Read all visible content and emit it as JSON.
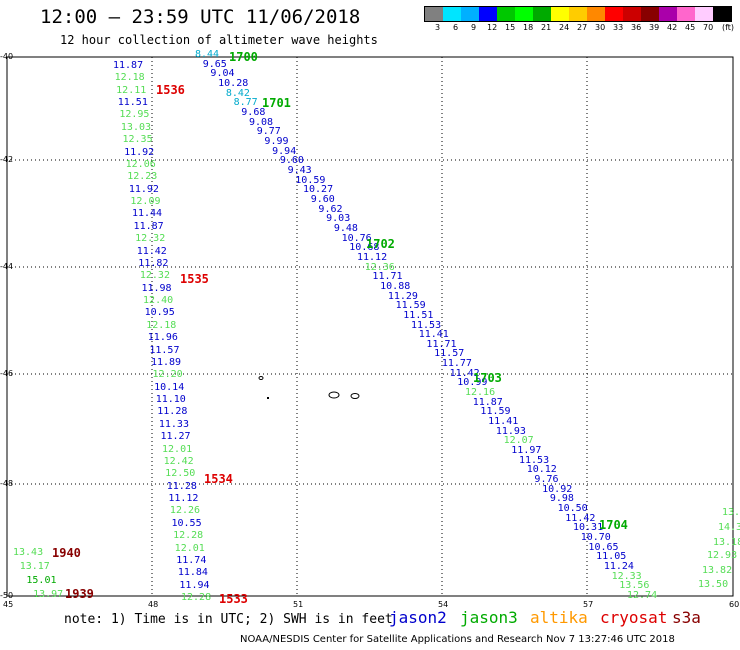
{
  "header": {
    "title": "12:00 – 23:59 UTC 11/06/2018",
    "subtitle": "12 hour collection of altimeter wave heights"
  },
  "colorbar": {
    "colors": [
      "#808080",
      "#00e5ff",
      "#00b0ff",
      "#0000ff",
      "#00c800",
      "#00ff00",
      "#00aa00",
      "#ffff00",
      "#ffcc00",
      "#ff8800",
      "#ff0000",
      "#cc0000",
      "#880000",
      "#aa00aa",
      "#ff66cc",
      "#ffccff",
      "#000000"
    ],
    "labels": [
      "3",
      "6",
      "9",
      "12",
      "15",
      "18",
      "21",
      "24",
      "27",
      "30",
      "33",
      "36",
      "39",
      "42",
      "45",
      "70"
    ],
    "unit": "(ft)"
  },
  "map": {
    "lon_range": [
      45,
      60
    ],
    "lat_range": [
      -40,
      -50
    ],
    "lat_ticks": [
      "-40",
      "-42",
      "-44",
      "-46",
      "-48",
      "-50"
    ],
    "lon_ticks": [
      "45",
      "48",
      "51",
      "54",
      "57",
      "60"
    ],
    "grid": "dotted",
    "colors": {
      "jason2": "#0000cc",
      "jason3": "#00aa00",
      "altika": "#ff9900",
      "cryosat": "#dd0000",
      "s3a": "#880000",
      "cyan": "#00aacc",
      "light_green": "#55dd55"
    },
    "tracks": [
      {
        "id": "track-1",
        "values": [
          {
            "v": "11.87",
            "c": "jason2"
          },
          {
            "v": "12.18",
            "c": "light_green"
          },
          {
            "v": "12.11",
            "c": "light_green"
          },
          {
            "v": "11.51",
            "c": "jason2"
          },
          {
            "v": "12.95",
            "c": "light_green"
          },
          {
            "v": "13.03",
            "c": "light_green"
          },
          {
            "v": "12.35",
            "c": "light_green"
          },
          {
            "v": "11.92",
            "c": "jason2"
          },
          {
            "v": "12.06",
            "c": "light_green"
          },
          {
            "v": "12.23",
            "c": "light_green"
          },
          {
            "v": "11.92",
            "c": "jason2"
          },
          {
            "v": "12.09",
            "c": "light_green"
          },
          {
            "v": "11.44",
            "c": "jason2"
          },
          {
            "v": "11.87",
            "c": "jason2"
          },
          {
            "v": "12.32",
            "c": "light_green"
          },
          {
            "v": "11.42",
            "c": "jason2"
          },
          {
            "v": "11.82",
            "c": "jason2"
          },
          {
            "v": "12.32",
            "c": "light_green"
          },
          {
            "v": "11.98",
            "c": "jason2"
          },
          {
            "v": "12.40",
            "c": "light_green"
          },
          {
            "v": "10.95",
            "c": "jason2"
          },
          {
            "v": "12.18",
            "c": "light_green"
          },
          {
            "v": "11.96",
            "c": "jason2"
          },
          {
            "v": "11.57",
            "c": "jason2"
          },
          {
            "v": "11.89",
            "c": "jason2"
          },
          {
            "v": "12.20",
            "c": "light_green"
          },
          {
            "v": "10.14",
            "c": "jason2"
          },
          {
            "v": "11.10",
            "c": "jason2"
          },
          {
            "v": "11.28",
            "c": "jason2"
          },
          {
            "v": "11.33",
            "c": "jason2"
          },
          {
            "v": "11.27",
            "c": "jason2"
          },
          {
            "v": "12.01",
            "c": "light_green"
          },
          {
            "v": "12.42",
            "c": "light_green"
          },
          {
            "v": "12.50",
            "c": "light_green"
          },
          {
            "v": "11.28",
            "c": "jason2"
          },
          {
            "v": "11.12",
            "c": "jason2"
          },
          {
            "v": "12.26",
            "c": "light_green"
          },
          {
            "v": "10.55",
            "c": "jason2"
          },
          {
            "v": "12.28",
            "c": "light_green"
          },
          {
            "v": "12.01",
            "c": "light_green"
          },
          {
            "v": "11.74",
            "c": "jason2"
          },
          {
            "v": "11.84",
            "c": "jason2"
          },
          {
            "v": "11.94",
            "c": "jason2"
          },
          {
            "v": "12.28",
            "c": "light_green"
          }
        ]
      },
      {
        "id": "track-2",
        "values": [
          {
            "v": "8.44",
            "c": "cyan"
          },
          {
            "v": "9.65",
            "c": "jason2"
          },
          {
            "v": "9.04",
            "c": "jason2"
          },
          {
            "v": "10.28",
            "c": "jason2"
          },
          {
            "v": "8.42",
            "c": "cyan"
          },
          {
            "v": "8.77",
            "c": "cyan"
          },
          {
            "v": "9.68",
            "c": "jason2"
          },
          {
            "v": "9.08",
            "c": "jason2"
          },
          {
            "v": "9.77",
            "c": "jason2"
          },
          {
            "v": "9.99",
            "c": "jason2"
          },
          {
            "v": "9.94",
            "c": "jason2"
          },
          {
            "v": "9.60",
            "c": "jason2"
          },
          {
            "v": "9.43",
            "c": "jason2"
          },
          {
            "v": "10.59",
            "c": "jason2"
          },
          {
            "v": "10.27",
            "c": "jason2"
          },
          {
            "v": "9.60",
            "c": "jason2"
          },
          {
            "v": "9.62",
            "c": "jason2"
          },
          {
            "v": "9.03",
            "c": "jason2"
          },
          {
            "v": "9.48",
            "c": "jason2"
          },
          {
            "v": "10.76",
            "c": "jason2"
          },
          {
            "v": "10.68",
            "c": "jason2"
          },
          {
            "v": "11.12",
            "c": "jason2"
          },
          {
            "v": "12.36",
            "c": "light_green"
          },
          {
            "v": "11.71",
            "c": "jason2"
          },
          {
            "v": "10.88",
            "c": "jason2"
          },
          {
            "v": "11.29",
            "c": "jason2"
          },
          {
            "v": "11.59",
            "c": "jason2"
          },
          {
            "v": "11.51",
            "c": "jason2"
          },
          {
            "v": "11.53",
            "c": "jason2"
          },
          {
            "v": "11.41",
            "c": "jason2"
          },
          {
            "v": "11.71",
            "c": "jason2"
          },
          {
            "v": "11.57",
            "c": "jason2"
          },
          {
            "v": "11.77",
            "c": "jason2"
          },
          {
            "v": "11.42",
            "c": "jason2"
          },
          {
            "v": "10.99",
            "c": "jason2"
          },
          {
            "v": "12.16",
            "c": "light_green"
          },
          {
            "v": "11.87",
            "c": "jason2"
          },
          {
            "v": "11.59",
            "c": "jason2"
          },
          {
            "v": "11.41",
            "c": "jason2"
          },
          {
            "v": "11.93",
            "c": "jason2"
          },
          {
            "v": "12.07",
            "c": "light_green"
          },
          {
            "v": "11.97",
            "c": "jason2"
          },
          {
            "v": "11.53",
            "c": "jason2"
          },
          {
            "v": "10.12",
            "c": "jason2"
          },
          {
            "v": "9.76",
            "c": "jason2"
          },
          {
            "v": "10.92",
            "c": "jason2"
          },
          {
            "v": "9.98",
            "c": "jason2"
          },
          {
            "v": "10.50",
            "c": "jason2"
          },
          {
            "v": "11.42",
            "c": "jason2"
          },
          {
            "v": "10.31",
            "c": "jason2"
          },
          {
            "v": "10.70",
            "c": "jason2"
          },
          {
            "v": "10.65",
            "c": "jason2"
          },
          {
            "v": "11.05",
            "c": "jason2"
          },
          {
            "v": "11.24",
            "c": "jason2"
          },
          {
            "v": "12.33",
            "c": "light_green"
          },
          {
            "v": "13.56",
            "c": "light_green"
          },
          {
            "v": "12.74",
            "c": "light_green"
          }
        ]
      },
      {
        "id": "track-3",
        "values": [
          {
            "v": "13.43",
            "c": "light_green"
          },
          {
            "v": "13.17",
            "c": "light_green"
          },
          {
            "v": "15.01",
            "c": "jason3"
          },
          {
            "v": "13.97",
            "c": "light_green"
          }
        ]
      },
      {
        "id": "track-4",
        "values": [
          {
            "v": "13.",
            "c": "light_green"
          },
          {
            "v": "14.3",
            "c": "light_green"
          },
          {
            "v": "13.18",
            "c": "light_green"
          },
          {
            "v": "12.93",
            "c": "light_green"
          },
          {
            "v": "13.82",
            "c": "light_green"
          },
          {
            "v": "13.50",
            "c": "light_green"
          }
        ]
      }
    ],
    "time_labels": [
      {
        "t": "1700",
        "c": "jason3"
      },
      {
        "t": "1701",
        "c": "jason3"
      },
      {
        "t": "1702",
        "c": "jason3"
      },
      {
        "t": "1703",
        "c": "jason3"
      },
      {
        "t": "1704",
        "c": "jason3"
      },
      {
        "t": "1536",
        "c": "cryosat"
      },
      {
        "t": "1535",
        "c": "cryosat"
      },
      {
        "t": "1534",
        "c": "cryosat"
      },
      {
        "t": "1533",
        "c": "cryosat"
      },
      {
        "t": "1940",
        "c": "s3a"
      },
      {
        "t": "1939",
        "c": "s3a"
      }
    ]
  },
  "footer": {
    "note": "note: 1) Time is in UTC; 2) SWH is in feet",
    "legend": [
      {
        "name": "jason2",
        "color": "#0000cc"
      },
      {
        "name": "jason3",
        "color": "#00aa00"
      },
      {
        "name": "altika",
        "color": "#ff9900"
      },
      {
        "name": "cryosat",
        "color": "#dd0000"
      },
      {
        "name": "s3a",
        "color": "#880000"
      }
    ],
    "credit": "NOAA/NESDIS Center for Satellite Applications and Research   Nov  7 13:27:46 UTC 2018"
  }
}
